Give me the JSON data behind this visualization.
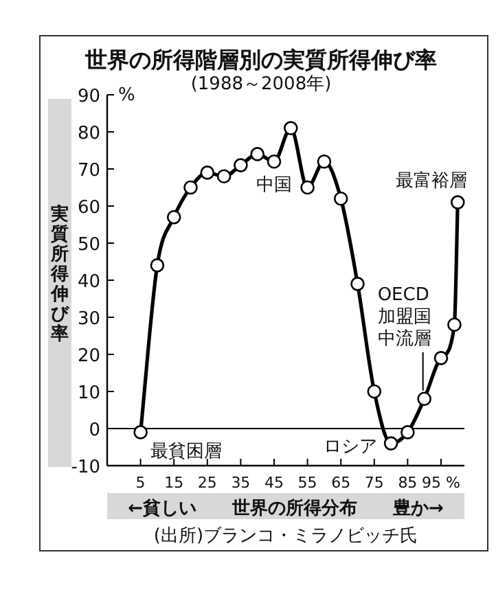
{
  "chart_data": {
    "type": "line",
    "title": "世界の所得階層別の実質所得伸び率",
    "subtitle": "(1988～2008年)",
    "ylabel": "実質所得伸び率",
    "xlabel": "←貧しい　　世界の所得分布　　豊か→",
    "x": [
      5,
      10,
      15,
      20,
      25,
      30,
      35,
      40,
      45,
      50,
      55,
      60,
      65,
      70,
      75,
      80,
      85,
      90,
      95,
      99,
      100
    ],
    "series": [
      {
        "color": "#000000",
        "values": [
          -1,
          44,
          57,
          65,
          69,
          68,
          71,
          74,
          72,
          81,
          65,
          72,
          62,
          39,
          10,
          -4,
          -1,
          8,
          19,
          28,
          61
        ]
      }
    ],
    "xlim": [
      -5,
      102
    ],
    "xticks": [
      5,
      15,
      25,
      35,
      45,
      55,
      65,
      75,
      85,
      {
        "value": 95,
        "label": "95 %"
      }
    ],
    "ylim": [
      -10,
      90
    ],
    "yticks": [
      -10,
      0,
      10,
      20,
      30,
      40,
      50,
      60,
      70,
      80,
      90
    ],
    "ref_lines": [
      {
        "axis": "y",
        "value": 0
      }
    ],
    "marker": "circle",
    "line_style": "solid",
    "annotations": [
      {
        "text": "中国",
        "x": 45,
        "y": 72
      },
      {
        "text": "最富裕層",
        "x": 100,
        "y": 61
      },
      {
        "text": "OECD加盟国中流層",
        "x": 90,
        "y": 8
      },
      {
        "text": "ロシア",
        "x": 80,
        "y": -4
      },
      {
        "text": "最貧困層",
        "x": 5,
        "y": -1
      },
      "%",
      "(出所)ブランコ・ミラノビッチ氏"
    ]
  }
}
